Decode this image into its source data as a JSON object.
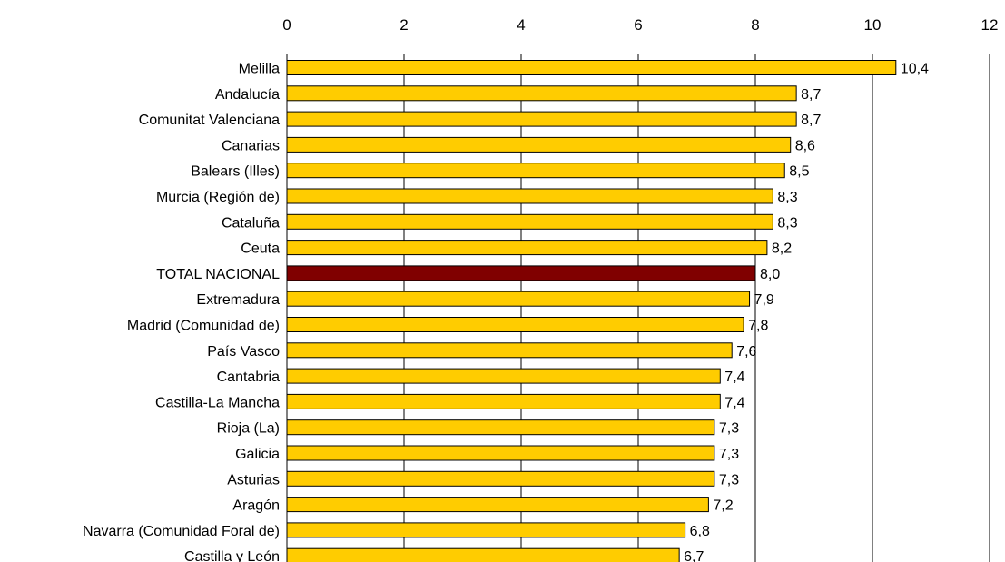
{
  "chart_data": {
    "type": "bar",
    "orientation": "horizontal",
    "x_axis_position": "top",
    "xlim": [
      0,
      12
    ],
    "xticks": [
      0,
      2,
      4,
      6,
      8,
      10,
      12
    ],
    "grid": "vertical",
    "title": "",
    "xlabel": "",
    "ylabel": "",
    "categories": [
      "Melilla",
      "Andalucía",
      "Comunitat Valenciana",
      "Canarias",
      "Balears (Illes)",
      "Murcia (Región de)",
      "Cataluña",
      "Ceuta",
      "TOTAL NACIONAL",
      "Extremadura",
      "Madrid (Comunidad de)",
      "País Vasco",
      "Cantabria",
      "Castilla-La Mancha",
      "Rioja (La)",
      "Galicia",
      "Asturias",
      "Aragón",
      "Navarra (Comunidad Foral de)",
      "Castilla y León"
    ],
    "values": [
      10.4,
      8.7,
      8.7,
      8.6,
      8.5,
      8.3,
      8.3,
      8.2,
      8.0,
      7.9,
      7.8,
      7.6,
      7.4,
      7.4,
      7.3,
      7.3,
      7.3,
      7.2,
      6.8,
      6.7
    ],
    "value_labels": [
      "10,4",
      "8,7",
      "8,7",
      "8,6",
      "8,5",
      "8,3",
      "8,3",
      "8,2",
      "8,0",
      "7,9",
      "7,8",
      "7,6",
      "7,4",
      "7,4",
      "7,3",
      "7,3",
      "7,3",
      "7,2",
      "6,8",
      "6,7"
    ],
    "colors": {
      "bar": "#FFCC00",
      "highlight": "#800000",
      "bar_border": "#000000",
      "grid": "#000000"
    },
    "highlight_category": "TOTAL NACIONAL"
  }
}
